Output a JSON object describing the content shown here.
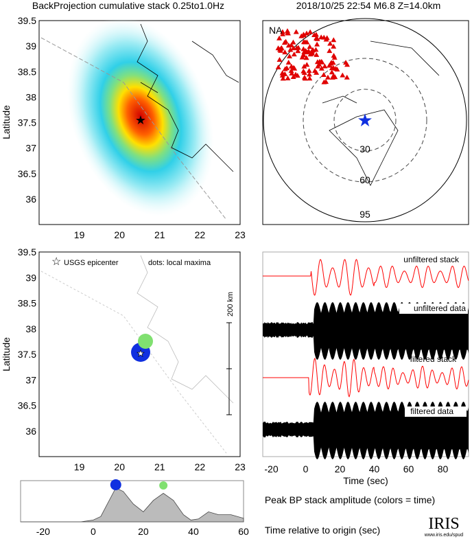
{
  "titles": {
    "left": "BackProjection cumulative stack 0.25to1.0Hz",
    "right": "2018/10/25 22:54  M6.8  Z=14.0km"
  },
  "colors": {
    "stack": "#ff0000",
    "data": "#000000",
    "peak_blue": "#1030e0",
    "peak_green": "#80e070",
    "amp_fill": "#bbbbbb"
  },
  "chart_data": [
    {
      "type": "heatmap",
      "name": "cumulative-stack-map",
      "ylabel": "Latitude",
      "xlim": [
        18,
        23
      ],
      "ylim": [
        35.5,
        39.5
      ],
      "xticks": [
        "19",
        "20",
        "21",
        "22",
        "23"
      ],
      "yticks": [
        "39.5",
        "39",
        "38.5",
        "38",
        "37.5",
        "37",
        "36.5",
        "36"
      ],
      "peak": {
        "lon": 20.5,
        "lat": 37.6
      },
      "epicenter": {
        "lon": 20.55,
        "lat": 37.5
      }
    },
    {
      "type": "scatter",
      "name": "station-map",
      "region_label": "NA",
      "ring_labels": [
        "30",
        "60",
        "95"
      ]
    },
    {
      "type": "scatter",
      "name": "local-maxima-map",
      "ylabel": "Latitude",
      "xlim": [
        18,
        23
      ],
      "ylim": [
        35.5,
        39.5
      ],
      "xticks": [
        "19",
        "20",
        "21",
        "22",
        "23"
      ],
      "yticks": [
        "39.5",
        "39",
        "38.5",
        "38",
        "37.5",
        "37",
        "36.5",
        "36"
      ],
      "legend": {
        "epicenter": "USGS epicenter",
        "dots": "dots: local maxima"
      },
      "scale_label": "200 km",
      "points": [
        {
          "lon": 20.55,
          "lat": 37.5,
          "time": 9,
          "color": "blue"
        },
        {
          "lon": 20.65,
          "lat": 37.7,
          "time": 28,
          "color": "green"
        }
      ]
    },
    {
      "type": "line",
      "name": "waveforms",
      "xlabel": "Time (sec)",
      "xlim": [
        -25,
        95
      ],
      "xticks": [
        "-20",
        "0",
        "20",
        "40",
        "60",
        "80"
      ],
      "traces": [
        "unfiltered stack",
        "unfiltered data",
        "filtered stack",
        "filtered data"
      ]
    },
    {
      "type": "area",
      "name": "peak-amplitude",
      "title": "Peak BP stack amplitude (colors = time)",
      "xlabel": "Time relative to origin (sec)",
      "xlim": [
        -29,
        60
      ],
      "xticks": [
        "-20",
        "0",
        "20",
        "40",
        "60"
      ],
      "x": [
        -29,
        -5,
        0,
        3,
        6,
        9,
        12,
        16,
        20,
        24,
        28,
        32,
        36,
        39,
        42,
        46,
        50,
        55,
        60
      ],
      "y": [
        0,
        0,
        0.05,
        0.15,
        0.55,
        0.95,
        0.85,
        0.5,
        0.28,
        0.6,
        0.8,
        0.6,
        0.2,
        0.05,
        0.08,
        0.28,
        0.2,
        0.2,
        0.1
      ]
    }
  ],
  "logo": {
    "name": "IRIS",
    "url": "www.iris.edu/spud"
  }
}
